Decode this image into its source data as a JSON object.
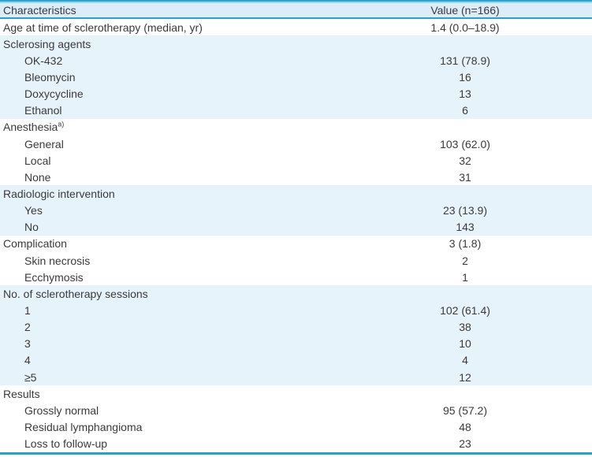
{
  "colors": {
    "accent_border": "#2a9fd2",
    "accent_border_light": "#9ad8ec",
    "header_bg": "#dcedf7",
    "row_blue_bg": "#e7f3fa",
    "row_white_bg": "#ffffff",
    "text": "#3a3a3a"
  },
  "table": {
    "header": {
      "characteristics": "Characteristics",
      "value": "Value (n=166)"
    },
    "rows": [
      {
        "label": "Age at time of sclerotherapy (median, yr)",
        "value": "1.4 (0.0–18.9)",
        "indent": 0,
        "shade": "white"
      },
      {
        "label": "Sclerosing agents",
        "value": "",
        "indent": 0,
        "shade": "blue"
      },
      {
        "label": "OK-432",
        "value": "131 (78.9)",
        "indent": 1,
        "shade": "blue"
      },
      {
        "label": "Bleomycin",
        "value": "16",
        "indent": 1,
        "shade": "blue"
      },
      {
        "label": "Doxycycline",
        "value": "13",
        "indent": 1,
        "shade": "blue"
      },
      {
        "label": "Ethanol",
        "value": "6",
        "indent": 1,
        "shade": "blue"
      },
      {
        "label": "Anesthesia",
        "sup": "a)",
        "value": "",
        "indent": 0,
        "shade": "white"
      },
      {
        "label": "General",
        "value": "103 (62.0)",
        "indent": 1,
        "shade": "white"
      },
      {
        "label": "Local",
        "value": "32",
        "indent": 1,
        "shade": "white"
      },
      {
        "label": "None",
        "value": "31",
        "indent": 1,
        "shade": "white"
      },
      {
        "label": "Radiologic intervention",
        "value": "",
        "indent": 0,
        "shade": "blue"
      },
      {
        "label": "Yes",
        "value": "23 (13.9)",
        "indent": 1,
        "shade": "blue"
      },
      {
        "label": "No",
        "value": "143",
        "indent": 1,
        "shade": "blue"
      },
      {
        "label": "Complication",
        "value": "3 (1.8)",
        "indent": 0,
        "shade": "white"
      },
      {
        "label": "Skin necrosis",
        "value": "2",
        "indent": 1,
        "shade": "white"
      },
      {
        "label": "Ecchymosis",
        "value": "1",
        "indent": 1,
        "shade": "white"
      },
      {
        "label": "No. of sclerotherapy sessions",
        "value": "",
        "indent": 0,
        "shade": "blue"
      },
      {
        "label": "1",
        "value": "102 (61.4)",
        "indent": 1,
        "shade": "blue"
      },
      {
        "label": "2",
        "value": "38",
        "indent": 1,
        "shade": "blue"
      },
      {
        "label": "3",
        "value": "10",
        "indent": 1,
        "shade": "blue"
      },
      {
        "label": "4",
        "value": "4",
        "indent": 1,
        "shade": "blue"
      },
      {
        "label": "≥5",
        "value": "12",
        "indent": 1,
        "shade": "blue"
      },
      {
        "label": "Results",
        "value": "",
        "indent": 0,
        "shade": "white"
      },
      {
        "label": "Grossly normal",
        "value": "95 (57.2)",
        "indent": 1,
        "shade": "white"
      },
      {
        "label": "Residual lymphangioma",
        "value": "48",
        "indent": 1,
        "shade": "white"
      },
      {
        "label": "Loss to follow-up",
        "value": "23",
        "indent": 1,
        "shade": "white"
      }
    ]
  }
}
